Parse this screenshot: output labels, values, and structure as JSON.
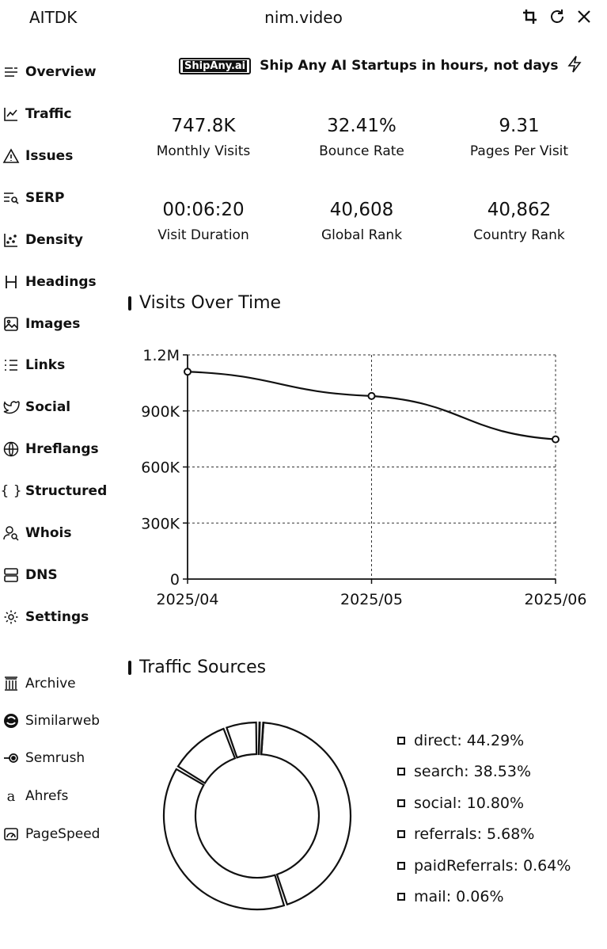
{
  "header": {
    "app_name": "AITDK",
    "site": "nim.video",
    "icons": [
      "crop-icon",
      "refresh-icon",
      "close-icon"
    ]
  },
  "sidebar": {
    "items": [
      {
        "label": "Overview",
        "icon": "overview-icon"
      },
      {
        "label": "Traffic",
        "icon": "traffic-icon"
      },
      {
        "label": "Issues",
        "icon": "warning-icon"
      },
      {
        "label": "SERP",
        "icon": "serp-icon"
      },
      {
        "label": "Density",
        "icon": "density-icon"
      },
      {
        "label": "Headings",
        "icon": "headings-icon"
      },
      {
        "label": "Images",
        "icon": "image-icon"
      },
      {
        "label": "Links",
        "icon": "links-icon"
      },
      {
        "label": "Social",
        "icon": "twitter-icon"
      },
      {
        "label": "Hreflangs",
        "icon": "globe-icon"
      },
      {
        "label": "Structured",
        "icon": "braces-icon"
      },
      {
        "label": "Whois",
        "icon": "user-search-icon"
      },
      {
        "label": "DNS",
        "icon": "server-icon"
      },
      {
        "label": "Settings",
        "icon": "gear-icon"
      }
    ],
    "external": [
      {
        "label": "Archive",
        "icon": "archive-icon"
      },
      {
        "label": "Similarweb",
        "icon": "similarweb-icon"
      },
      {
        "label": "Semrush",
        "icon": "semrush-icon"
      },
      {
        "label": "Ahrefs",
        "icon": "ahrefs-icon"
      },
      {
        "label": "PageSpeed",
        "icon": "pagespeed-icon"
      }
    ]
  },
  "banner": {
    "badge": "ShipAny.ai",
    "text": "Ship Any AI Startups in hours, not days",
    "icon": "lightning-icon"
  },
  "stats": [
    {
      "value": "747.8K",
      "label": "Monthly Visits"
    },
    {
      "value": "32.41%",
      "label": "Bounce Rate"
    },
    {
      "value": "9.31",
      "label": "Pages Per Visit"
    },
    {
      "value": "00:06:20",
      "label": "Visit Duration"
    },
    {
      "value": "40,608",
      "label": "Global Rank"
    },
    {
      "value": "40,862",
      "label": "Country Rank"
    }
  ],
  "visits_section": {
    "title": "Visits Over Time"
  },
  "traffic_section": {
    "title": "Traffic Sources"
  },
  "chart_data": [
    {
      "type": "line",
      "title": "Visits Over Time",
      "x": [
        "2025/04",
        "2025/05",
        "2025/06"
      ],
      "series": [
        {
          "values": [
            1110000,
            980000,
            747800
          ]
        }
      ],
      "ylim": [
        0,
        1200000
      ],
      "yticks": [
        0,
        300000,
        600000,
        900000,
        1200000
      ],
      "ytick_labels": [
        "0",
        "300K",
        "600K",
        "900K",
        "1.2M"
      ],
      "grid": true
    },
    {
      "type": "pie",
      "title": "Traffic Sources",
      "donut": true,
      "labels": [
        "direct",
        "search",
        "social",
        "referrals",
        "paidReferrals",
        "mail"
      ],
      "values": [
        44.29,
        38.53,
        10.8,
        5.68,
        0.64,
        0.06
      ],
      "legend": [
        "direct: 44.29%",
        "search: 38.53%",
        "social: 10.80%",
        "referrals: 5.68%",
        "paidReferrals: 0.64%",
        "mail: 0.06%"
      ],
      "legend_position": "right"
    }
  ]
}
